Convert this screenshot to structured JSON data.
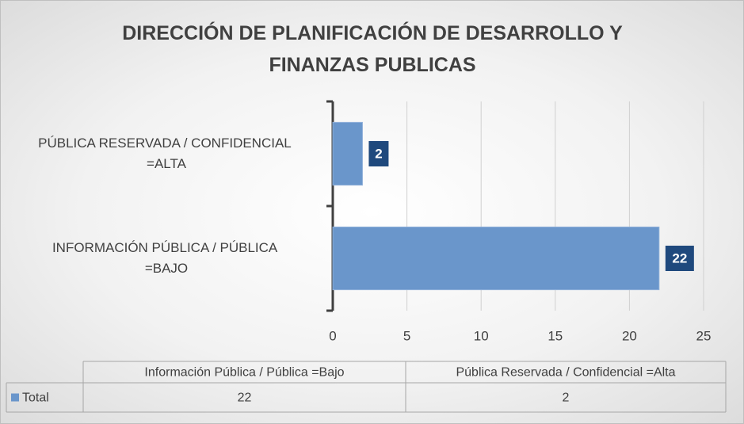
{
  "chart_data": {
    "type": "bar",
    "orientation": "horizontal",
    "title": "DIRECCIÓN DE PLANIFICACIÓN DE DESARROLLO Y FINANZAS PUBLICAS",
    "categories": [
      "INFORMACIÓN  PÚBLICA / PÚBLICA =BAJO",
      "PÚBLICA RESERVADA  / CONFIDENCIAL =ALTA"
    ],
    "series": [
      {
        "name": "Total",
        "color": "#6a96cb",
        "values": [
          22,
          2
        ]
      }
    ],
    "xlim": [
      0,
      25
    ],
    "xticks": [
      0,
      5,
      10,
      15,
      20,
      25
    ],
    "grid": true,
    "data_label_color": "#1f497d",
    "data_table": {
      "columns": [
        "Información Pública / Pública =Bajo",
        "Pública Reservada / Confidencial =Alta"
      ]
    }
  }
}
